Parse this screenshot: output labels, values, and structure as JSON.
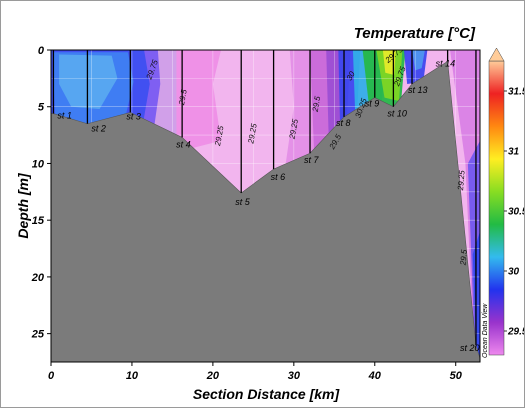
{
  "chart_data": {
    "type": "section-contour",
    "title": "Temperature [°C]",
    "xlabel": "Section Distance [km]",
    "ylabel": "Depth [m]",
    "xlim": [
      0,
      53
    ],
    "ylim": [
      0,
      27.5
    ],
    "y_inverted": true,
    "grid": true,
    "x_ticks": [
      0,
      10,
      20,
      30,
      40,
      50
    ],
    "y_ticks": [
      0,
      5,
      10,
      15,
      20,
      25
    ],
    "colorbar": {
      "ticks": [
        29.5,
        30,
        30.5,
        31,
        31.5
      ],
      "range": [
        29.3,
        31.75
      ],
      "colors": [
        "#ee88ee",
        "#9933cc",
        "#2233ee",
        "#33bbee",
        "#22bb44",
        "#88dd22",
        "#ffee22",
        "#ff8811",
        "#ee2222",
        "#ffcc99"
      ]
    },
    "stations": [
      {
        "name": "st 1",
        "x": 0.3,
        "depth": 5.6
      },
      {
        "name": "st 2",
        "x": 4.5,
        "depth": 6.5
      },
      {
        "name": "st 3",
        "x": 9.8,
        "depth": 5.5
      },
      {
        "name": "st 4",
        "x": 16.2,
        "depth": 7.7
      },
      {
        "name": "st 5",
        "x": 23.5,
        "depth": 12.6
      },
      {
        "name": "st 6",
        "x": 27.5,
        "depth": 10.5
      },
      {
        "name": "st 7",
        "x": 32.0,
        "depth": 9.1
      },
      {
        "name": "st 8",
        "x": 36.2,
        "depth": 5.9
      },
      {
        "name": "st 9",
        "x": 40.0,
        "depth": 4.2
      },
      {
        "name": "st 10",
        "x": 42.3,
        "depth": 5.0
      },
      {
        "name": "st 13",
        "x": 44.6,
        "depth": 3.0
      },
      {
        "name": "st 14",
        "x": 49.0,
        "depth": 1.0
      },
      {
        "name": "st 20",
        "x": 52.5,
        "depth": 26.0
      }
    ],
    "isoline_labels": [
      "29.75",
      "29.5",
      "29.25",
      "29.25",
      "29.25",
      "29.5",
      "30",
      "30.25",
      "29.5",
      "29.75",
      "29.5",
      "29.25",
      "29.75"
    ],
    "watermark": "Ocean Data View"
  }
}
